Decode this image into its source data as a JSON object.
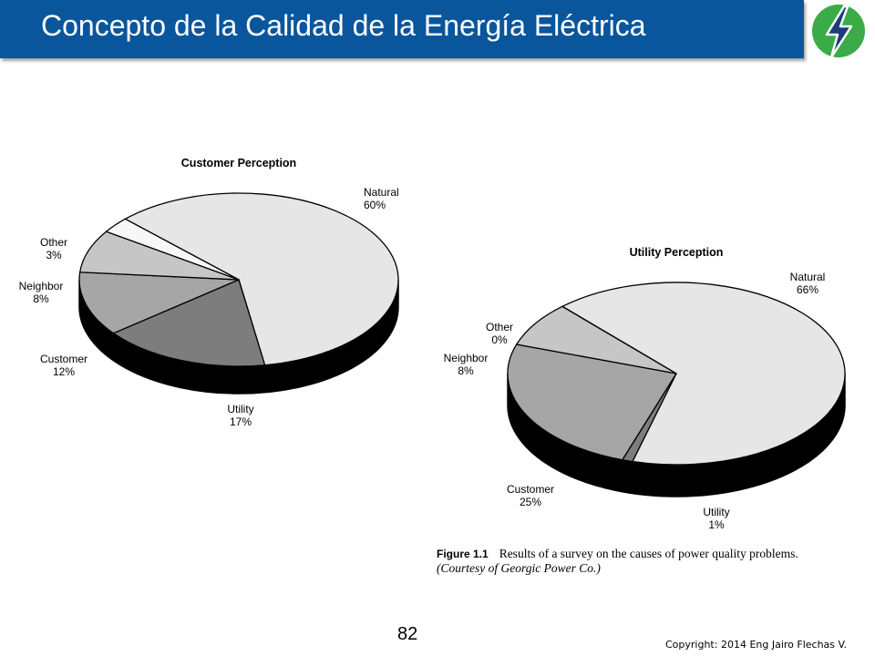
{
  "slide": {
    "title": "Concepto de la Calidad de la Energía Eléctrica",
    "page_number": "82",
    "copyright": "Copyright: 2014 Eng Jairo Flechas V.",
    "accent_color": "#0a569c",
    "logo_color": "#3aab46",
    "logo_icon": "lightning-bolt-icon"
  },
  "caption": {
    "figure_label": "Figure 1.1",
    "text": "Results of a survey on the causes of power quality problems.",
    "courtesy": "(Courtesy of Georgic Power Co.)"
  },
  "chart_data": [
    {
      "type": "pie",
      "title": "Customer Perception",
      "categories": [
        "Natural",
        "Utility",
        "Customer",
        "Neighbor",
        "Other"
      ],
      "values": [
        60,
        17,
        12,
        8,
        3
      ],
      "value_labels": [
        "60%",
        "17%",
        "12%",
        "8%",
        "3%"
      ],
      "colors": [
        "#e6e6e6",
        "#7d7d7d",
        "#a6a6a6",
        "#c6c6c6",
        "#f7f7f7"
      ],
      "style": "3d"
    },
    {
      "type": "pie",
      "title": "Utility Perception",
      "categories": [
        "Natural",
        "Utility",
        "Customer",
        "Neighbor",
        "Other"
      ],
      "values": [
        66,
        1,
        25,
        8,
        0
      ],
      "value_labels": [
        "66%",
        "1%",
        "25%",
        "8%",
        "0%"
      ],
      "colors": [
        "#e6e6e6",
        "#7d7d7d",
        "#a6a6a6",
        "#c6c6c6",
        "#f7f7f7"
      ],
      "style": "3d"
    }
  ]
}
